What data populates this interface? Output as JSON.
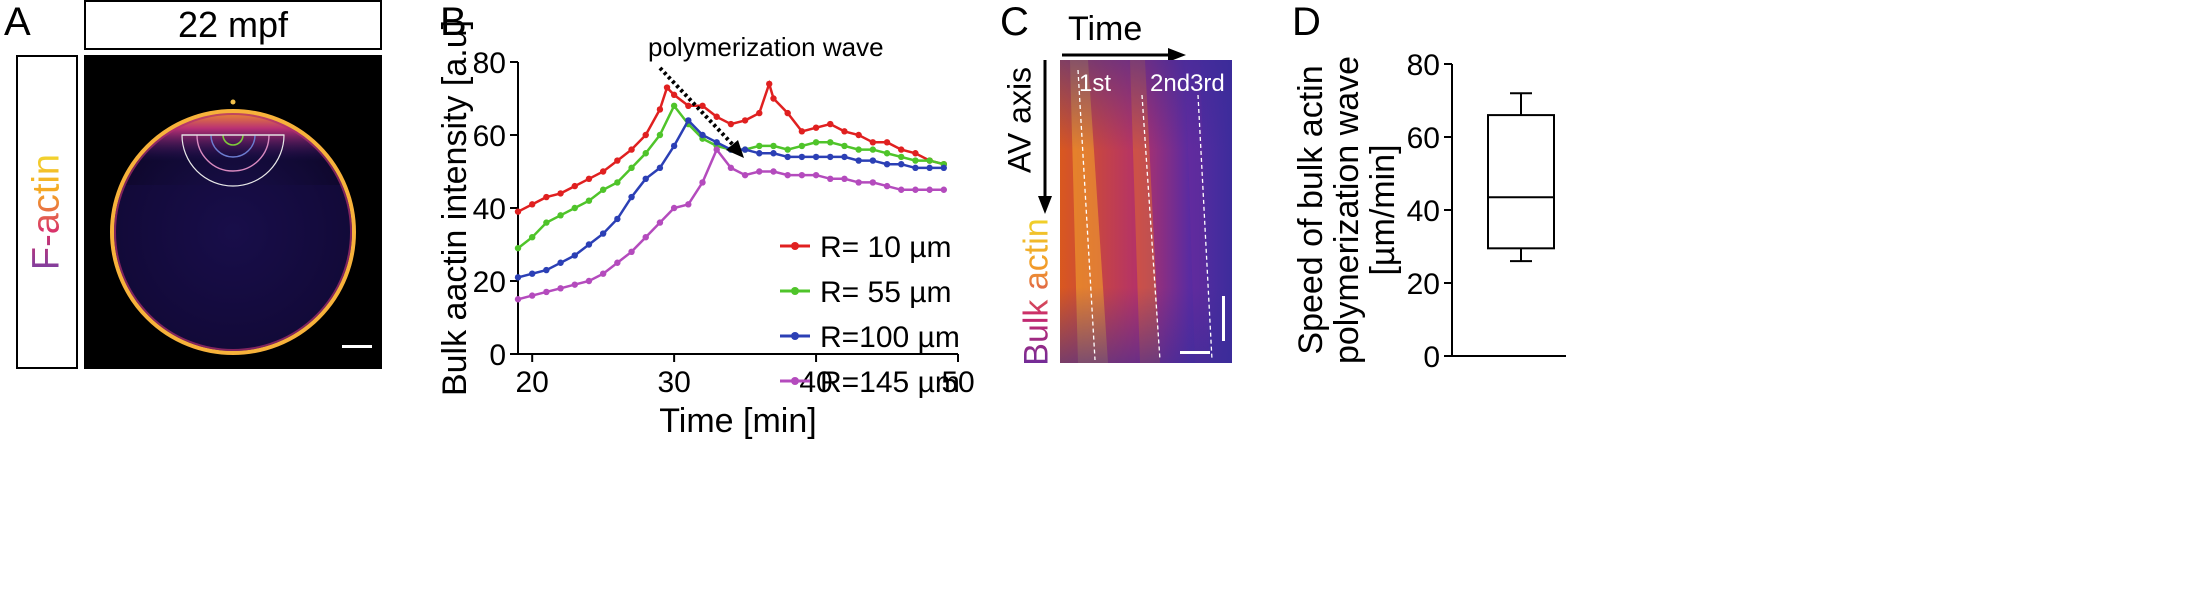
{
  "panels": {
    "A": {
      "letter": "A",
      "title": "22 mpf",
      "channel_label": "F-actin",
      "colors": {
        "lut_low": "#1b0b4a",
        "lut_high": "#ffe27a",
        "arc_green": "#7ecb3a",
        "arc_pink": "#d98ac0",
        "arc_white": "#e8e8e8"
      }
    },
    "B": {
      "letter": "B",
      "annotation": "polymerization wave"
    },
    "C": {
      "letter": "C",
      "time_label": "Time",
      "axis_label": "AV axis",
      "channel_label": "Bulk actin",
      "wave_labels": [
        "1st",
        "2nd",
        "3rd"
      ]
    },
    "D": {
      "letter": "D"
    }
  },
  "chart_data": [
    {
      "type": "line",
      "xlabel": "Time [min]",
      "ylabel": "Bulk aactin intensity [a.u]",
      "xlim": [
        19,
        50
      ],
      "ylim": [
        0,
        80
      ],
      "xticks": [
        20,
        30,
        40,
        50
      ],
      "yticks": [
        0,
        20,
        40,
        60,
        80
      ],
      "legend_position": "bottom-right",
      "series": [
        {
          "name": "R= 10 µm",
          "color": "#e02020",
          "x": [
            19,
            20,
            21,
            22,
            23,
            24,
            25,
            26,
            27,
            28,
            29,
            29.5,
            30,
            31,
            32,
            33,
            34,
            35,
            36,
            36.7,
            37,
            38,
            39,
            40,
            41,
            42,
            43,
            44,
            45,
            46,
            47,
            48,
            49
          ],
          "y": [
            39,
            41,
            43,
            44,
            46,
            48,
            50,
            53,
            56,
            60,
            67,
            73,
            71,
            68,
            68,
            65,
            63,
            64,
            66,
            74,
            70,
            66,
            61,
            62,
            63,
            61,
            60,
            58,
            58,
            56,
            55,
            53,
            52
          ]
        },
        {
          "name": "R= 55 µm",
          "color": "#4fc42a",
          "x": [
            19,
            20,
            21,
            22,
            23,
            24,
            25,
            26,
            27,
            28,
            29,
            30,
            31,
            32,
            33,
            34,
            35,
            36,
            37,
            38,
            39,
            40,
            41,
            42,
            43,
            44,
            45,
            46,
            47,
            48,
            49
          ],
          "y": [
            29,
            32,
            36,
            38,
            40,
            42,
            45,
            47,
            51,
            55,
            60,
            68,
            63,
            59,
            57,
            56,
            56,
            57,
            57,
            56,
            57,
            58,
            58,
            57,
            56,
            56,
            55,
            54,
            53,
            53,
            52
          ]
        },
        {
          "name": "R=100 µm",
          "color": "#2b3fb5",
          "x": [
            19,
            20,
            21,
            22,
            23,
            24,
            25,
            26,
            27,
            28,
            29,
            30,
            31,
            32,
            33,
            34,
            35,
            36,
            37,
            38,
            39,
            40,
            41,
            42,
            43,
            44,
            45,
            46,
            47,
            48,
            49
          ],
          "y": [
            21,
            22,
            23,
            25,
            27,
            30,
            33,
            37,
            43,
            48,
            51,
            57,
            64,
            60,
            58,
            56,
            56,
            55,
            55,
            54,
            54,
            54,
            54,
            54,
            53,
            53,
            52,
            52,
            51,
            51,
            51
          ]
        },
        {
          "name": "R=145 µm",
          "color": "#b44bbd",
          "x": [
            19,
            20,
            21,
            22,
            23,
            24,
            25,
            26,
            27,
            28,
            29,
            30,
            31,
            32,
            33,
            34,
            35,
            36,
            37,
            38,
            39,
            40,
            41,
            42,
            43,
            44,
            45,
            46,
            47,
            48,
            49
          ],
          "y": [
            15,
            16,
            17,
            18,
            19,
            20,
            22,
            25,
            28,
            32,
            36,
            40,
            41,
            47,
            56,
            51,
            49,
            50,
            50,
            49,
            49,
            49,
            48,
            48,
            47,
            47,
            46,
            45,
            45,
            45,
            45
          ]
        }
      ]
    },
    {
      "type": "box",
      "ylabel": "Speed of bulk actin polymerization wave [µm/min]",
      "ylim": [
        0,
        80
      ],
      "yticks": [
        0,
        20,
        40,
        60,
        80
      ],
      "box": {
        "min": 26,
        "q1": 29.5,
        "median": 43.5,
        "q3": 66,
        "max": 72
      }
    }
  ]
}
